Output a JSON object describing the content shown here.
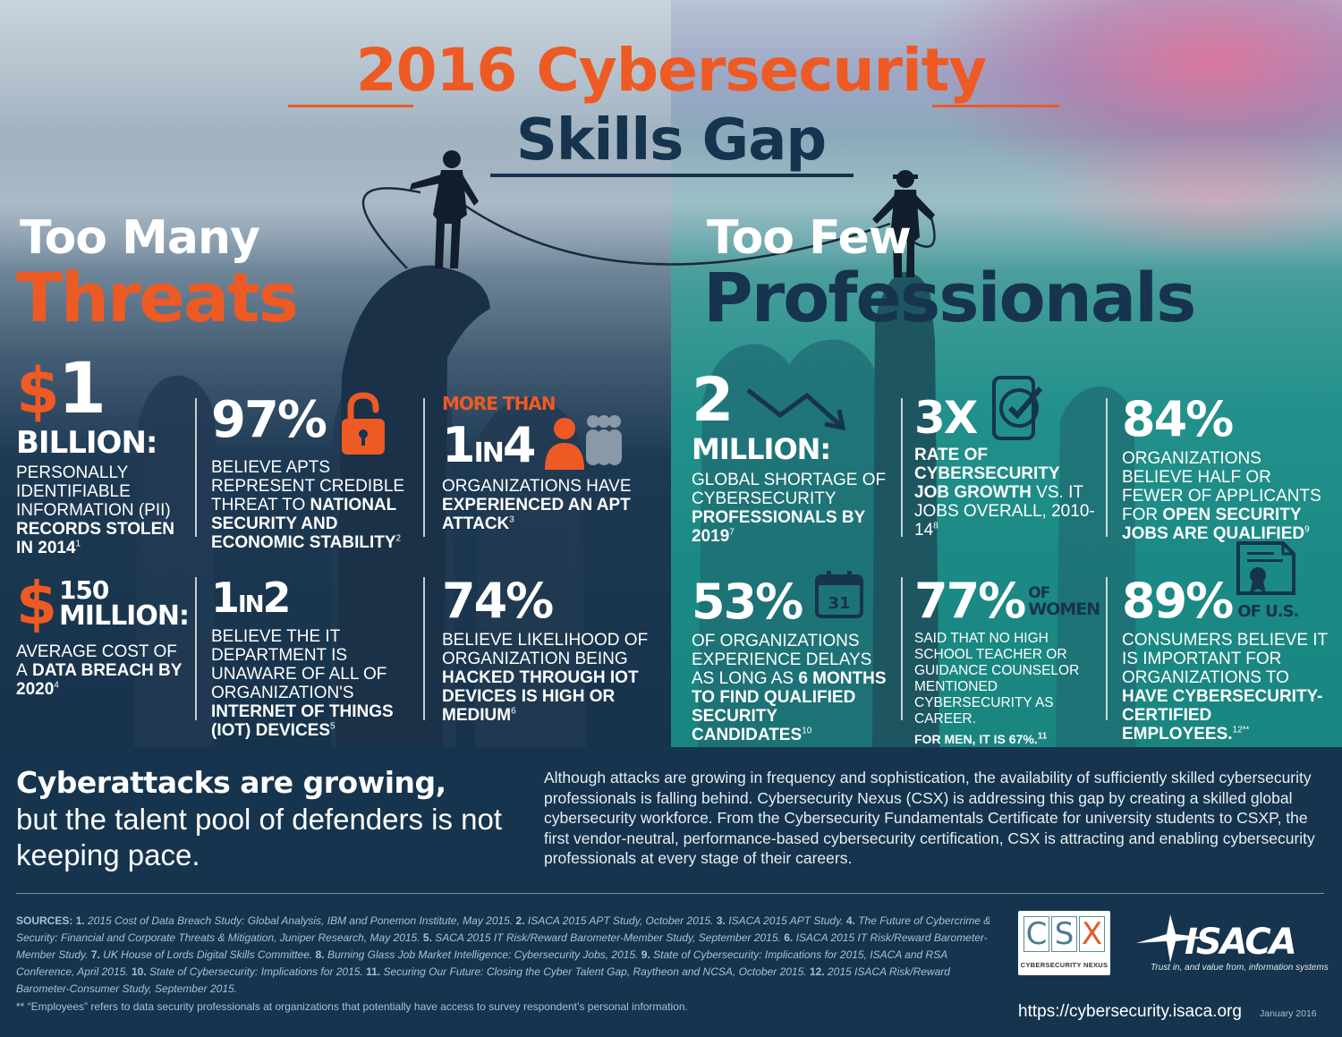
{
  "title": {
    "line1": "2016 Cybersecurity",
    "line2": "Skills Gap"
  },
  "left": {
    "heading_small": "Too Many",
    "heading_big": "Threats",
    "stats": [
      {
        "big": "$1",
        "mid": "BILLION:",
        "text": "PERSONALLY IDENTIFIABLE INFORMATION (PII)",
        "bold": "RECORDS STOLEN IN 2014",
        "sup": "1"
      },
      {
        "big": "97%",
        "text": "BELIEVE APTs REPRESENT CREDIBLE THREAT TO",
        "bold": "NATIONAL SECURITY AND ECONOMIC STABILITY",
        "sup": "2",
        "icon": "unlocked-padlock-icon"
      },
      {
        "pre": "MORE THAN",
        "big_a": "1",
        "big_in": "IN",
        "big_b": "4",
        "text": "ORGANIZATIONS HAVE",
        "bold": "EXPERIENCED AN APT ATTACK",
        "sup": "3",
        "icon": "people-group-icon"
      },
      {
        "big_a": "$",
        "big_b": "150",
        "mid": "MILLION:",
        "text": "AVERAGE COST OF A",
        "bold": "DATA BREACH BY 2020",
        "sup": "4"
      },
      {
        "big_a": "1",
        "big_in": "IN",
        "big_b": "2",
        "text": "BELIEVE THE IT DEPARTMENT IS UNAWARE OF ALL OF ORGANIZATION'S",
        "bold": "INTERNET OF THINGS (IOT) DEVICES",
        "sup": "5"
      },
      {
        "big": "74%",
        "text": "BELIEVE LIKELIHOOD OF ORGANIZATION BEING",
        "bold": "HACKED THROUGH IOT DEVICES IS HIGH OR",
        "tail": "MEDIUM",
        "sup": "6"
      }
    ]
  },
  "right": {
    "heading_small": "Too Few",
    "heading_big": "Professionals",
    "stats": [
      {
        "big": "2",
        "mid": "MILLION:",
        "text": "GLOBAL SHORTAGE OF CYBERSECURITY",
        "bold": "PROFESSIONALS BY 2019",
        "sup": "7",
        "icon": "downward-trend-arrow-icon"
      },
      {
        "big": "3X",
        "bold": "RATE OF CYBERSECURITY JOB GROWTH",
        "text": "VS. IT JOBS OVERALL, 2010-14",
        "sup": "8",
        "icon": "phone-checkmark-icon"
      },
      {
        "big": "84%",
        "text": "ORGANIZATIONS BELIEVE HALF OR FEWER OF APPLICANTS FOR",
        "bold": "OPEN SECURITY JOBS ARE QUALIFIED",
        "sup": "9"
      },
      {
        "big": "53%",
        "text": "OF ORGANIZATIONS EXPERIENCE DELAYS AS LONG AS",
        "bold_a": "6 MONTHS",
        "bold": "TO FIND QUALIFIED SECURITY CANDIDATES",
        "sup": "10",
        "calendar_day": "31"
      },
      {
        "big": "77%",
        "suffix_a": "OF",
        "suffix_b": "WOMEN",
        "text": "SAID THAT NO HIGH SCHOOL TEACHER OR GUIDANCE COUNSELOR MENTIONED CYBERSECURITY AS CAREER.",
        "bold": "FOR MEN, IT IS 67%.",
        "sup": "11"
      },
      {
        "big": "89%",
        "suffix": "OF U.S.",
        "text": "CONSUMERS BELIEVE IT IS IMPORTANT FOR ORGANIZATIONS TO",
        "bold": "HAVE CYBERSECURITY-CERTIFIED EMPLOYEES.",
        "sup": "12**",
        "icon": "certificate-icon"
      }
    ]
  },
  "bottom": {
    "tag_bold": "Cyberattacks are growing,",
    "tag_rest": "but the talent pool of defenders is not keeping pace.",
    "paragraph": "Although attacks are growing in frequency and sophistication, the availability of sufficiently skilled cybersecurity professionals is falling behind. Cybersecurity Nexus (CSX) is addressing this gap by creating a skilled global cybersecurity workforce. From the Cybersecurity Fundamentals Certificate for university students to CSXP, the first vendor-neutral, performance-based cybersecurity certification, CSX is attracting and enabling cybersecurity professionals at every stage of their careers.",
    "sources_label": "SOURCES:",
    "sources": [
      {
        "n": "1.",
        "t": "2015 Cost of Data Breach Study: Global Analysis, IBM and Ponemon Institute, May 2015."
      },
      {
        "n": "2.",
        "t": "ISACA 2015 APT Study, October 2015."
      },
      {
        "n": "3.",
        "t": "ISACA 2015 APT Study."
      },
      {
        "n": "4.",
        "t": "The Future of Cybercrime & Security: Financial and Corporate Threats & Mitigation, Juniper Research, May 2015."
      },
      {
        "n": "5.",
        "t": "SACA 2015 IT Risk/Reward Barometer-Member Study, September 2015."
      },
      {
        "n": "6.",
        "t": "ISACA 2015 IT Risk/Reward Barometer-Member Study."
      },
      {
        "n": "7.",
        "t": "UK House of Lords Digital Skills Committee."
      },
      {
        "n": "8.",
        "t": "Burning Glass Job Market Intelligence: Cybersecurity Jobs, 2015."
      },
      {
        "n": "9.",
        "t": "State of Cybersecurity: Implications for 2015, ISACA and RSA Conference, April 2015."
      },
      {
        "n": "10.",
        "t": "State of Cybersecurity: Implications for 2015."
      },
      {
        "n": "11.",
        "t": "Securing Our Future: Closing the Cyber Talent Gap, Raytheon and NCSA, October 2015."
      },
      {
        "n": "12.",
        "t": "2015 ISACA Risk/Reward Barometer-Consumer Study, September 2015."
      }
    ],
    "note": "** “Employees” refers to data security professionals at organizations that potentially have access to survey respondent’s personal information.",
    "csx_letters": [
      "C",
      "S",
      "X"
    ],
    "csx_sub": "CYBERSECURITY NEXUS",
    "isaca_name": "ISACA",
    "isaca_tagline": "Trust in, and value from, information systems",
    "url": "https://cybersecurity.isaca.org",
    "date": "January 2016"
  },
  "colors": {
    "orange": "#ee5a24",
    "navy": "#16344d",
    "teal": "#1b8a85"
  }
}
